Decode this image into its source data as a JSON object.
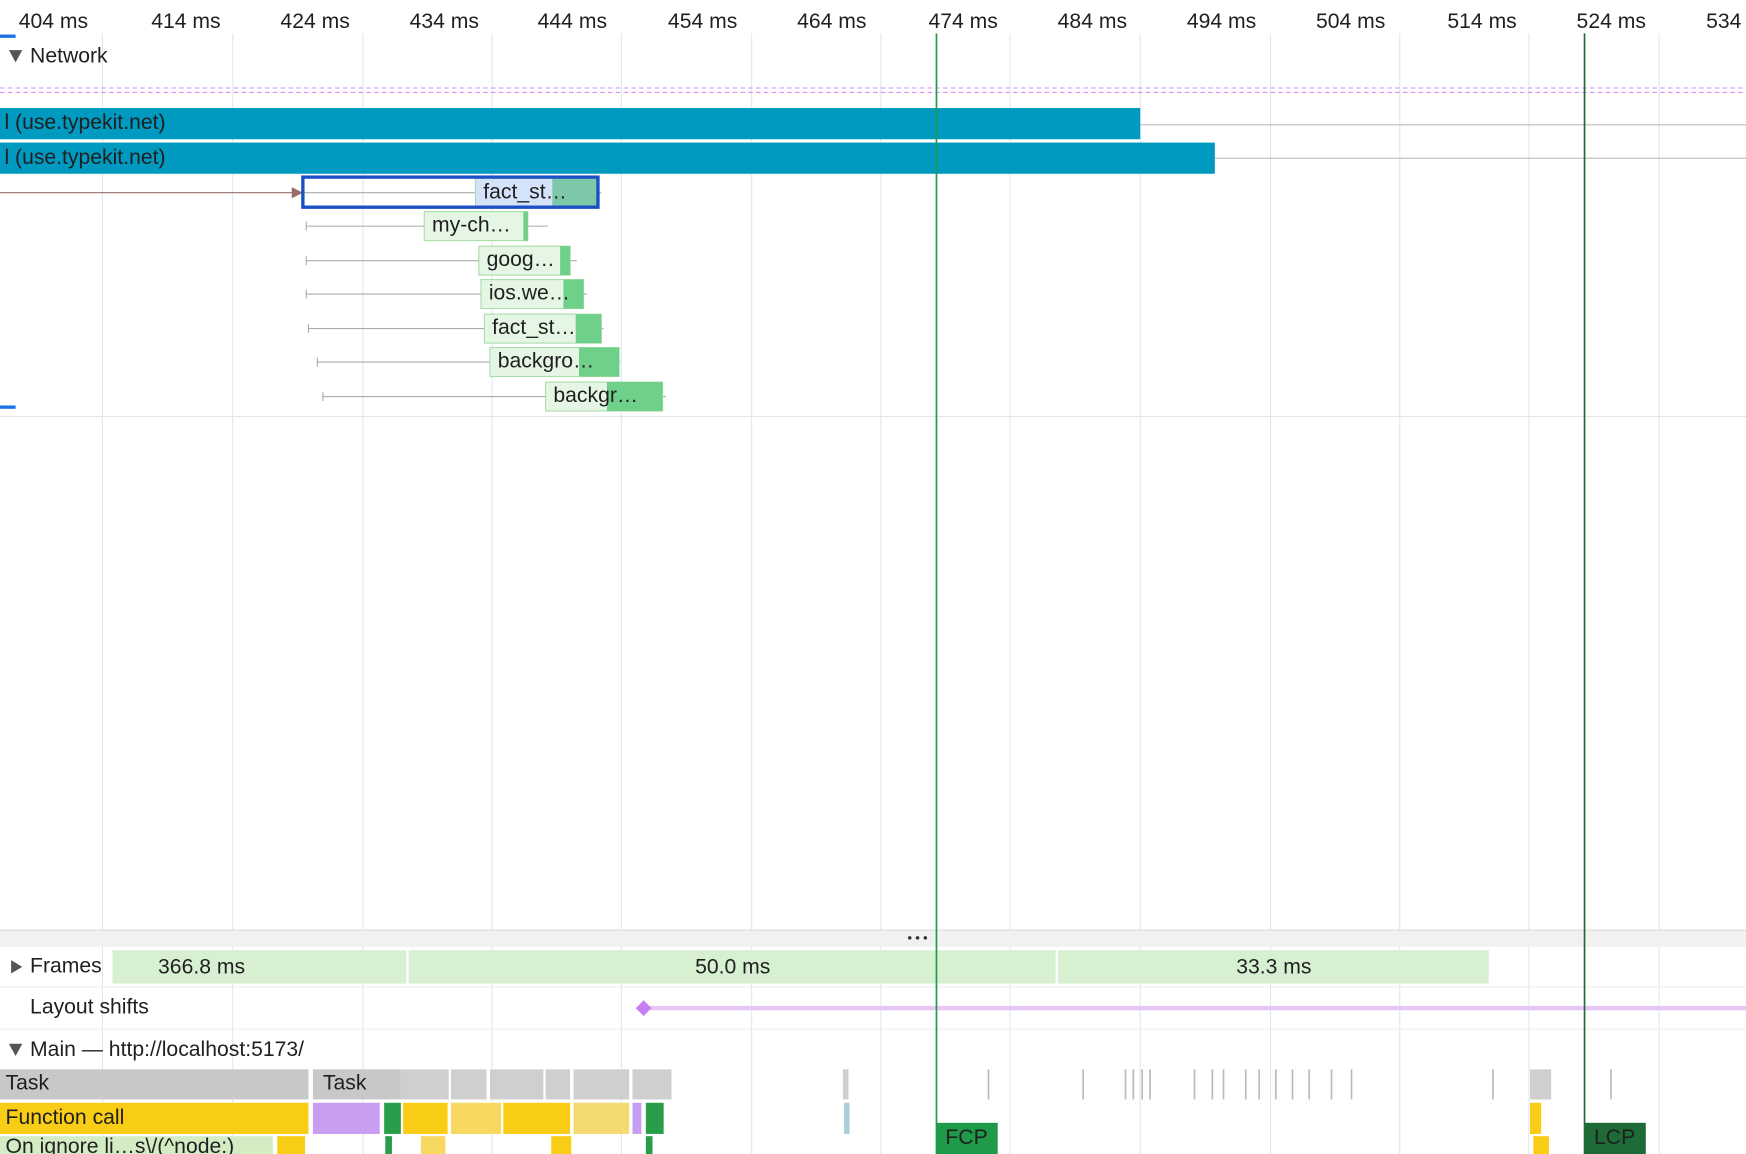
{
  "ruler": {
    "ticks": [
      "404 ms",
      "414 ms",
      "424 ms",
      "434 ms",
      "444 ms",
      "454 ms",
      "464 ms",
      "474 ms",
      "484 ms",
      "494 ms",
      "504 ms",
      "514 ms",
      "524 ms",
      "534"
    ]
  },
  "network": {
    "title": "Network",
    "requests": [
      "l (use.typekit.net)",
      "l (use.typekit.net)",
      "fact_st…",
      "my-ch…",
      "goog…",
      "ios.we…",
      "fact_st…",
      "backgro…",
      "backgr…"
    ]
  },
  "frames": {
    "title": "Frames",
    "labels": [
      "366.8 ms",
      "50.0 ms",
      "33.3 ms"
    ]
  },
  "layout_shifts": {
    "title": "Layout shifts"
  },
  "main": {
    "title": "Main — http://localhost:5173/",
    "entries": [
      "Task",
      "Task",
      "Function call",
      "On ignore li…s\\/(^node:)"
    ]
  },
  "markers": [
    "FCP",
    "LCP"
  ]
}
